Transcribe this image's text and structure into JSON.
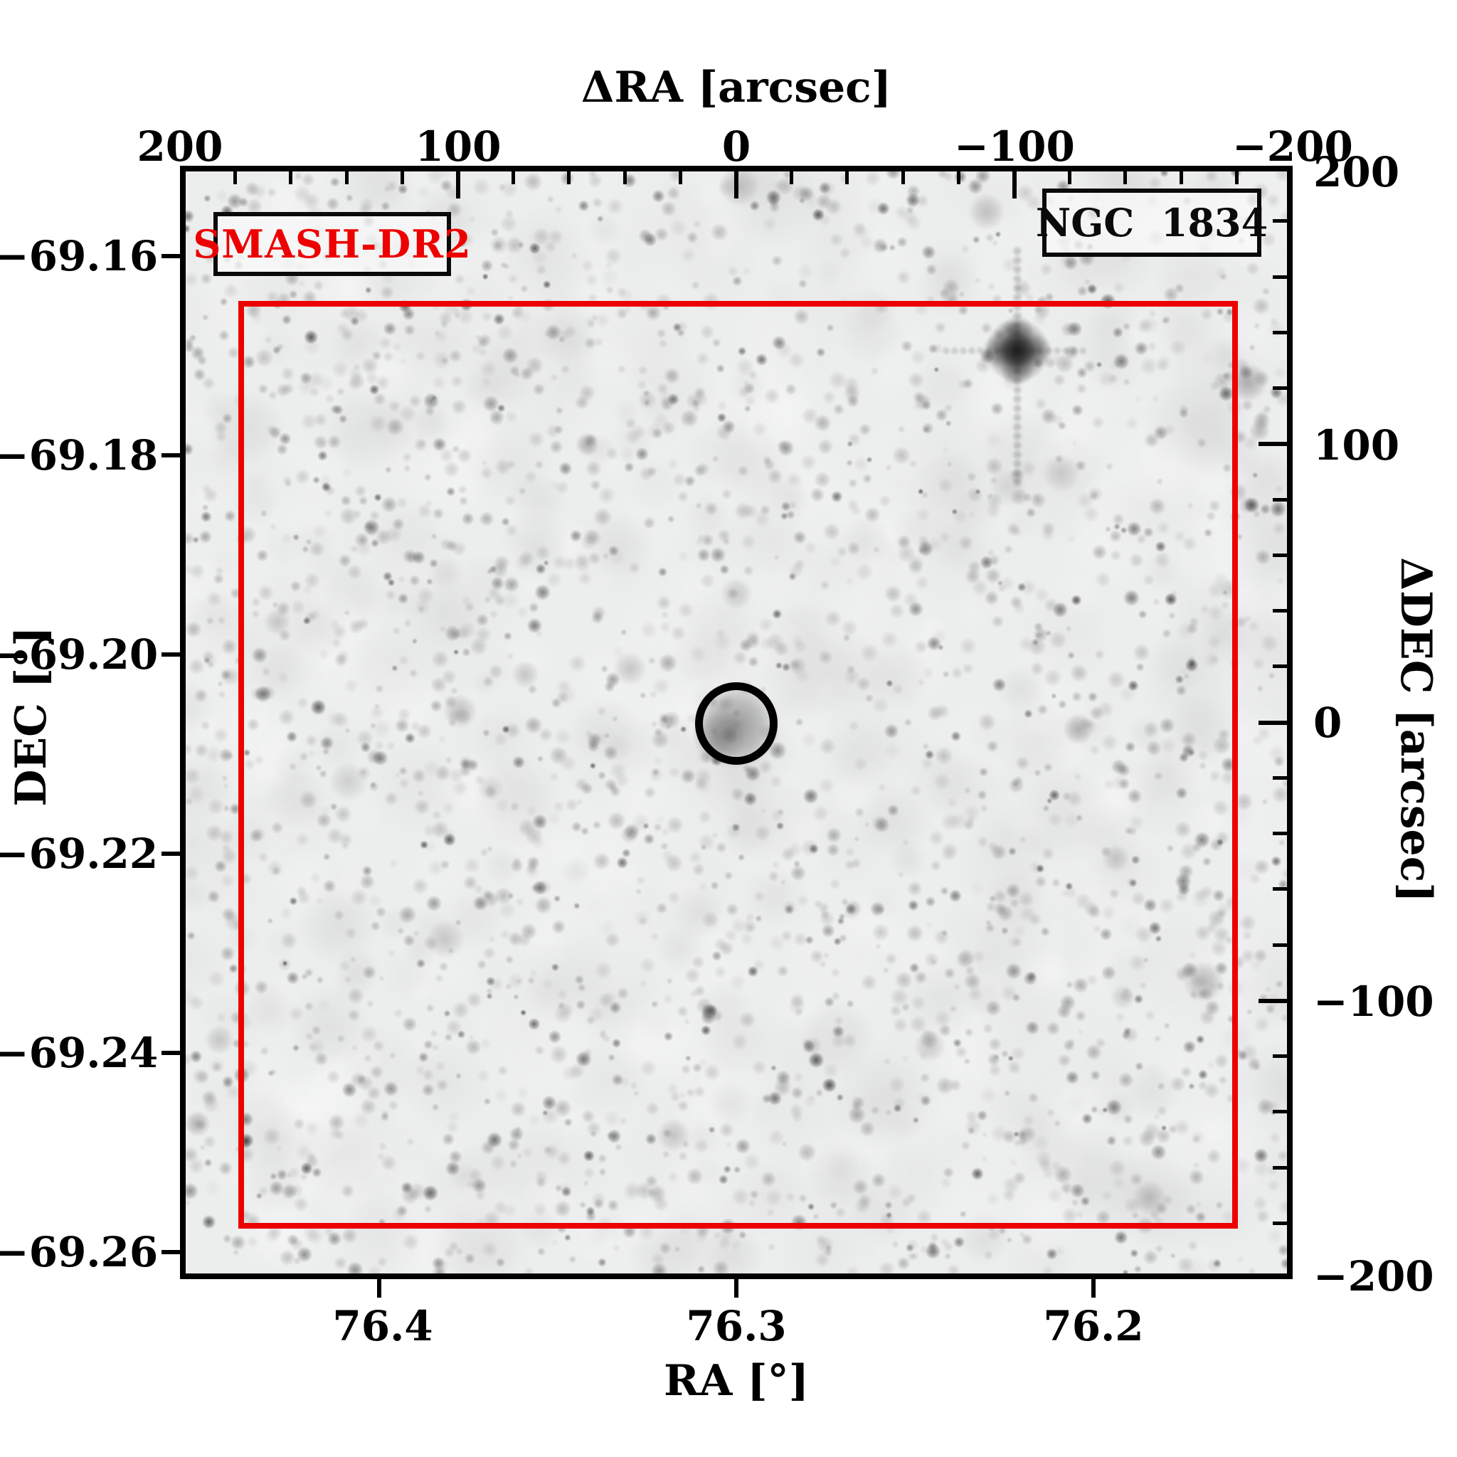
{
  "plot": {
    "survey_label": "SMASH-DR2",
    "object_label": "NGC  1834"
  },
  "axes": {
    "top": {
      "title": "ΔRA [arcsec]",
      "ticks": [
        "200",
        "100",
        "0",
        "−100",
        "−200"
      ]
    },
    "bottom": {
      "title": "RA [°]",
      "ticks": [
        "76.4",
        "76.3",
        "76.2"
      ]
    },
    "left": {
      "title": "DEC [°]",
      "ticks": [
        "−69.16",
        "−69.18",
        "−69.20",
        "−69.22",
        "−69.24",
        "−69.26"
      ]
    },
    "right": {
      "title": "ΔDEC [arcsec]",
      "ticks": [
        "200",
        "100",
        "0",
        "−100",
        "−200"
      ]
    }
  },
  "colors": {
    "accent_red": "#ec0000",
    "frame_black": "#000000",
    "field_background": "#ededed"
  },
  "chart_data": {
    "type": "heatmap",
    "description": "Inverted-grayscale sky-survey image cutout centered on the LMC star cluster NGC 1834 (dark speckles are stars). A black circle marks the cluster at field center, a red rectangle shows the SMASH-DR2 cutout footprint, and a bright saturated star with diffraction spikes lies in the upper right.",
    "x_axis_bottom": {
      "label": "RA [°]",
      "ticks": [
        76.4,
        76.3,
        76.2
      ],
      "range_left_to_right": [
        76.456,
        76.144
      ]
    },
    "y_axis_left": {
      "label": "DEC [°]",
      "ticks": [
        -69.16,
        -69.18,
        -69.2,
        -69.22,
        -69.24,
        -69.26
      ],
      "range_top_to_bottom": [
        -69.151,
        -69.263
      ]
    },
    "x_axis_top": {
      "label": "ΔRA [arcsec]",
      "ticks": [
        200,
        100,
        0,
        -100,
        -200
      ],
      "range_left_to_right": [
        200,
        -200
      ],
      "minor_tick_step_arcsec": 20
    },
    "y_axis_right": {
      "label": "ΔDEC [arcsec]",
      "ticks": [
        200,
        100,
        0,
        -100,
        -200
      ],
      "range_top_to_bottom": [
        200,
        -200
      ],
      "minor_tick_step_arcsec": 20
    },
    "grid": false,
    "legend": null,
    "annotations": [
      {
        "name": "survey-label",
        "text": "SMASH-DR2",
        "color": "#ec0000"
      },
      {
        "name": "object-label",
        "text": "NGC 1834",
        "color": "#000000"
      },
      {
        "name": "target-circle",
        "dra_arcsec": 0,
        "ddec_arcsec": 0,
        "radius_arcsec": 13
      },
      {
        "name": "footprint-box",
        "dra_range_arcsec": [
          179,
          -180
        ],
        "ddec_range_arcsec": [
          151,
          -182
        ],
        "color": "#ec0000"
      },
      {
        "name": "bright-star",
        "dra_arcsec": -101,
        "ddec_arcsec": 132
      }
    ]
  }
}
